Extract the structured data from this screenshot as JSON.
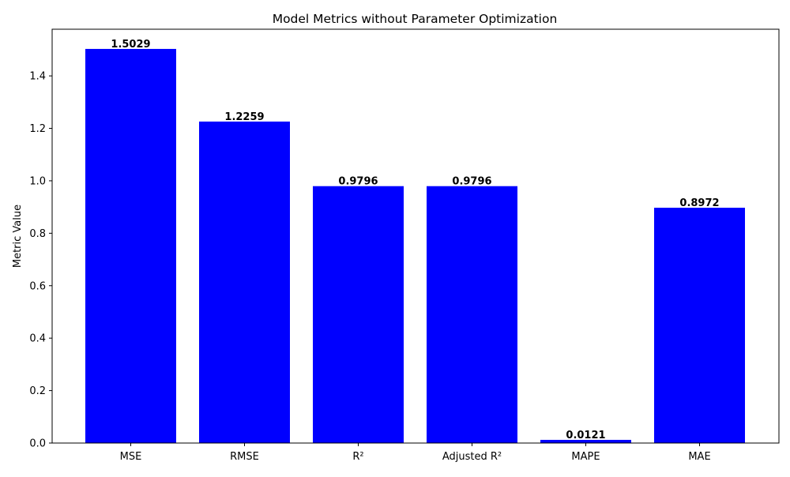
{
  "chart_data": {
    "type": "bar",
    "title": "Model Metrics without Parameter Optimization",
    "xlabel": "",
    "ylabel": "Metric Value",
    "categories": [
      "MSE",
      "RMSE",
      "R²",
      "Adjusted R²",
      "MAPE",
      "MAE"
    ],
    "values": [
      1.5029,
      1.2259,
      0.9796,
      0.9796,
      0.0121,
      0.8972
    ],
    "value_labels": [
      "1.5029",
      "1.2259",
      "0.9796",
      "0.9796",
      "0.0121",
      "0.8972"
    ],
    "ylim": [
      0,
      1.578
    ],
    "yticks": [
      0.0,
      0.2,
      0.4,
      0.6,
      0.8,
      1.0,
      1.2,
      1.4
    ],
    "ytick_labels": [
      "0.0",
      "0.2",
      "0.4",
      "0.6",
      "0.8",
      "1.0",
      "1.2",
      "1.4"
    ],
    "bar_color": "#0000ff",
    "grid": false,
    "legend": "none"
  }
}
